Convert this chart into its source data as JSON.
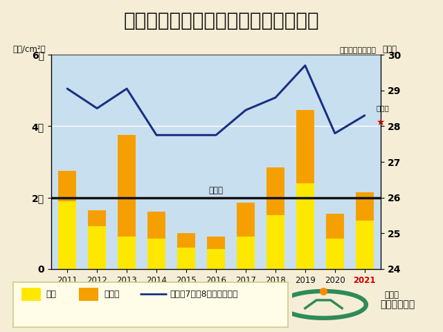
{
  "title": "大阪市の花粉飛散量（スギ＋ヒノキ）",
  "title_bg_color": "#F5C800",
  "chart_bg_color": "#C8DFF0",
  "outer_bg_color": "#F5EDD5",
  "years": [
    2011,
    2012,
    2013,
    2014,
    2015,
    2016,
    2017,
    2018,
    2019,
    2020,
    2021
  ],
  "sugi": [
    1900,
    1200,
    900,
    850,
    600,
    550,
    900,
    1500,
    2400,
    850,
    1350
  ],
  "hinoki": [
    850,
    450,
    2850,
    750,
    400,
    350,
    950,
    1350,
    2050,
    700,
    800
  ],
  "temp": [
    29.05,
    28.5,
    29.05,
    27.75,
    27.75,
    27.75,
    28.45,
    28.8,
    29.7,
    27.8,
    28.3
  ],
  "nendo_value": 2000,
  "ylim_left": [
    0,
    6000
  ],
  "ylim_right": [
    24,
    30
  ],
  "yticks_left": [
    0,
    2000,
    4000,
    6000
  ],
  "ytick_labels_left": [
    "0",
    "2千",
    "4千",
    "6千"
  ],
  "yticks_right": [
    24,
    25,
    26,
    27,
    28,
    29,
    30
  ],
  "sugi_color": "#FFE800",
  "hinoki_color": "#F5A000",
  "line_color": "#1A3080",
  "nendo_line_color": "#111111",
  "prediction_star_color": "#CC0000",
  "year_2021_color": "#CC0000",
  "ylabel_left": "（個/cm²）",
  "ylabel_right": "（度）",
  "label_sugi": "スギ",
  "label_hinoki": "ヒノキ",
  "label_line": "前年の7月～8月の平均気温",
  "label_nendo": "例年値",
  "label_prediction": "予測値",
  "source_label": "日本気象協会観測",
  "legend_logo_text": "日本気象協会"
}
